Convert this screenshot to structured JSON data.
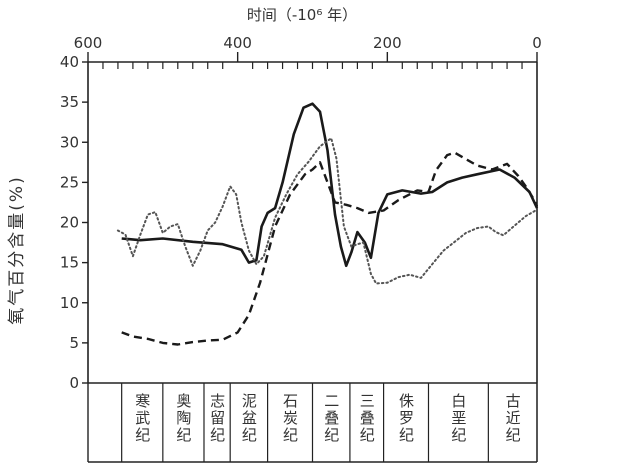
{
  "chart_data": {
    "type": "line",
    "top_axis_label": "时间（-10⁶ 年）",
    "ylabel": "氧气百分含量(%)",
    "x_range": [
      600,
      0
    ],
    "x_ticks": [
      "600",
      "400",
      "200",
      "0"
    ],
    "ylim": [
      0,
      40
    ],
    "y_ticks": [
      "0",
      "5",
      "10",
      "15",
      "20",
      "25",
      "30",
      "35",
      "40"
    ],
    "grid": false,
    "legend": "none",
    "periods": [
      {
        "name": "寒武纪",
        "start": 555,
        "end": 500
      },
      {
        "name": "奥陶纪",
        "start": 500,
        "end": 445
      },
      {
        "name": "志留纪",
        "start": 445,
        "end": 410
      },
      {
        "name": "泥盆纪",
        "start": 410,
        "end": 360
      },
      {
        "name": "石炭纪",
        "start": 360,
        "end": 300
      },
      {
        "name": "二叠纪",
        "start": 300,
        "end": 250
      },
      {
        "name": "三叠纪",
        "start": 250,
        "end": 205
      },
      {
        "name": "侏罗纪",
        "start": 205,
        "end": 145
      },
      {
        "name": "白垩纪",
        "start": 145,
        "end": 65
      },
      {
        "name": "古近纪",
        "start": 65,
        "end": 0
      }
    ],
    "series": [
      {
        "style": "solid",
        "color": "#1a1a1a",
        "points": [
          [
            555,
            18
          ],
          [
            530,
            17.8
          ],
          [
            500,
            18
          ],
          [
            460,
            17.6
          ],
          [
            420,
            17.3
          ],
          [
            395,
            16.6
          ],
          [
            385,
            15
          ],
          [
            375,
            15.3
          ],
          [
            368,
            19.5
          ],
          [
            360,
            21.2
          ],
          [
            350,
            21.8
          ],
          [
            340,
            25
          ],
          [
            325,
            31
          ],
          [
            312,
            34.3
          ],
          [
            300,
            34.8
          ],
          [
            290,
            33.8
          ],
          [
            280,
            29
          ],
          [
            270,
            21
          ],
          [
            262,
            17
          ],
          [
            255,
            14.6
          ],
          [
            248,
            16.3
          ],
          [
            240,
            18.8
          ],
          [
            230,
            17.5
          ],
          [
            222,
            15.6
          ],
          [
            212,
            21.2
          ],
          [
            200,
            23.5
          ],
          [
            180,
            24
          ],
          [
            155,
            23.6
          ],
          [
            140,
            23.8
          ],
          [
            120,
            25
          ],
          [
            100,
            25.6
          ],
          [
            80,
            26
          ],
          [
            50,
            26.6
          ],
          [
            30,
            25.6
          ],
          [
            10,
            23.8
          ],
          [
            0,
            21.8
          ]
        ]
      },
      {
        "style": "dashed",
        "color": "#1a1a1a",
        "points": [
          [
            555,
            6.3
          ],
          [
            540,
            5.8
          ],
          [
            520,
            5.5
          ],
          [
            500,
            5
          ],
          [
            480,
            4.8
          ],
          [
            460,
            5.1
          ],
          [
            440,
            5.3
          ],
          [
            420,
            5.4
          ],
          [
            400,
            6.3
          ],
          [
            385,
            8.5
          ],
          [
            370,
            12.5
          ],
          [
            350,
            19.5
          ],
          [
            330,
            23.5
          ],
          [
            310,
            26
          ],
          [
            300,
            26.6
          ],
          [
            290,
            27.5
          ],
          [
            280,
            25
          ],
          [
            270,
            22.5
          ],
          [
            255,
            22.2
          ],
          [
            240,
            21.8
          ],
          [
            225,
            21.2
          ],
          [
            205,
            21.5
          ],
          [
            185,
            22.8
          ],
          [
            160,
            24
          ],
          [
            145,
            23.8
          ],
          [
            135,
            26.5
          ],
          [
            120,
            28.4
          ],
          [
            110,
            28.7
          ],
          [
            95,
            27.9
          ],
          [
            80,
            27.1
          ],
          [
            60,
            26.6
          ],
          [
            40,
            27.3
          ],
          [
            25,
            25.8
          ],
          [
            15,
            24.5
          ],
          [
            5,
            23
          ],
          [
            0,
            22
          ]
        ]
      },
      {
        "style": "dotted",
        "color": "#555555",
        "points": [
          [
            560,
            19
          ],
          [
            550,
            18.5
          ],
          [
            540,
            15.8
          ],
          [
            530,
            18.5
          ],
          [
            520,
            21
          ],
          [
            510,
            21.3
          ],
          [
            500,
            18.7
          ],
          [
            490,
            19.5
          ],
          [
            480,
            19.8
          ],
          [
            470,
            17
          ],
          [
            460,
            14.6
          ],
          [
            450,
            16.5
          ],
          [
            440,
            19
          ],
          [
            430,
            20
          ],
          [
            420,
            22
          ],
          [
            410,
            24.5
          ],
          [
            402,
            23.5
          ],
          [
            395,
            20
          ],
          [
            385,
            16.5
          ],
          [
            375,
            14.8
          ],
          [
            365,
            15.8
          ],
          [
            350,
            20.6
          ],
          [
            335,
            23.5
          ],
          [
            320,
            26
          ],
          [
            305,
            27.6
          ],
          [
            290,
            29.5
          ],
          [
            275,
            30.5
          ],
          [
            268,
            28
          ],
          [
            258,
            19.5
          ],
          [
            248,
            17
          ],
          [
            240,
            17.3
          ],
          [
            232,
            17.5
          ],
          [
            222,
            13.6
          ],
          [
            215,
            12.4
          ],
          [
            200,
            12.5
          ],
          [
            185,
            13.2
          ],
          [
            170,
            13.5
          ],
          [
            155,
            13.1
          ],
          [
            140,
            14.8
          ],
          [
            125,
            16.5
          ],
          [
            110,
            17.6
          ],
          [
            95,
            18.7
          ],
          [
            80,
            19.3
          ],
          [
            65,
            19.5
          ],
          [
            55,
            18.8
          ],
          [
            45,
            18.4
          ],
          [
            30,
            19.6
          ],
          [
            15,
            20.8
          ],
          [
            0,
            21.6
          ]
        ]
      }
    ]
  }
}
